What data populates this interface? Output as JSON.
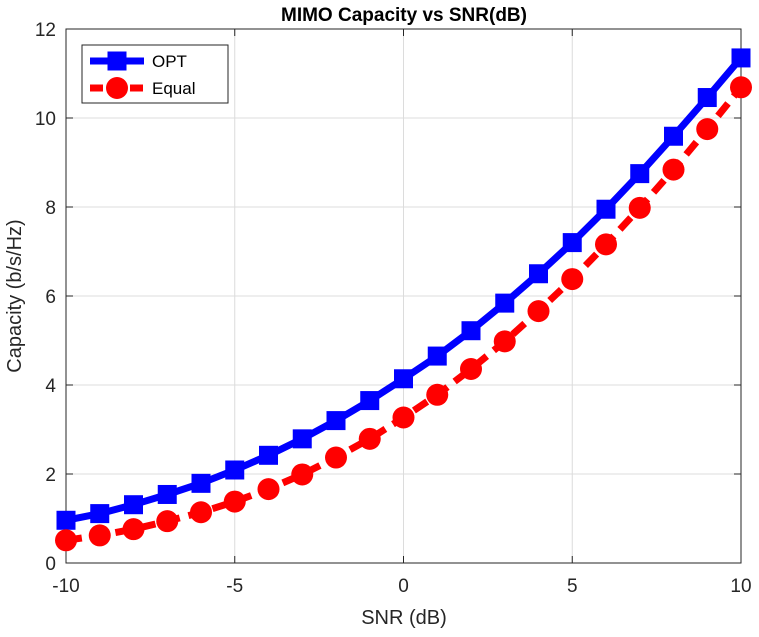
{
  "chart_data": {
    "type": "line",
    "title": "MIMO Capacity vs SNR(dB)",
    "xlabel": "SNR (dB)",
    "ylabel": "Capacity (b/s/Hz)",
    "xlim": [
      -10,
      10
    ],
    "ylim": [
      0,
      12
    ],
    "xticks": [
      -10,
      -5,
      0,
      5,
      10
    ],
    "yticks": [
      0,
      2,
      4,
      6,
      8,
      10,
      12
    ],
    "grid": true,
    "legend_position": "top-left",
    "x": [
      -10,
      -9,
      -8,
      -7,
      -6,
      -5,
      -4,
      -3,
      -2,
      -1,
      0,
      1,
      2,
      3,
      4,
      5,
      6,
      7,
      8,
      9,
      10
    ],
    "series": [
      {
        "name": "OPT",
        "color": "#0000ff",
        "marker": "square",
        "line_style": "solid",
        "values": [
          0.96,
          1.11,
          1.31,
          1.54,
          1.79,
          2.09,
          2.42,
          2.79,
          3.2,
          3.65,
          4.14,
          4.65,
          5.22,
          5.84,
          6.5,
          7.2,
          7.95,
          8.75,
          9.59,
          10.46,
          11.35
        ]
      },
      {
        "name": "Equal",
        "color": "#ff0000",
        "marker": "circle",
        "line_style": "dashed",
        "values": [
          0.51,
          0.62,
          0.76,
          0.94,
          1.14,
          1.38,
          1.66,
          1.99,
          2.37,
          2.79,
          3.27,
          3.78,
          4.36,
          4.98,
          5.66,
          6.38,
          7.16,
          7.98,
          8.84,
          9.75,
          10.69
        ]
      }
    ]
  }
}
